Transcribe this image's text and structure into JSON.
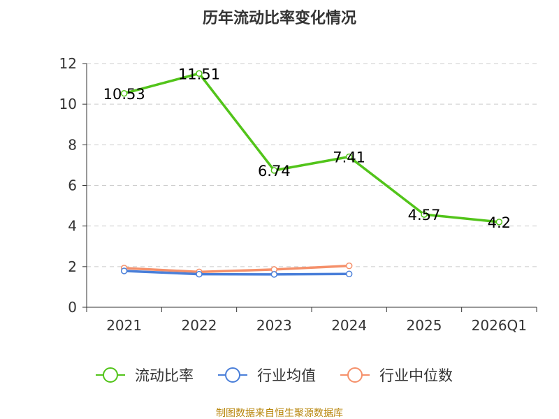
{
  "chart_data": {
    "type": "line",
    "title": "历年流动比率变化情况",
    "categories": [
      "2021",
      "2022",
      "2023",
      "2024",
      "2025",
      "2026Q1"
    ],
    "ylim": [
      0,
      12
    ],
    "yticks": [
      0,
      2,
      4,
      6,
      8,
      10,
      12
    ],
    "grid": true,
    "legend_position": "bottom",
    "series": [
      {
        "name": "流动比率",
        "color": "#52c41a",
        "values": [
          10.53,
          11.51,
          6.74,
          7.41,
          4.57,
          4.2
        ],
        "labels": [
          "10.53",
          "11.51",
          "6.74",
          "7.41",
          "4.57",
          "4.2"
        ]
      },
      {
        "name": "行业均值",
        "color": "#4a7fd9",
        "values": [
          1.79,
          1.63,
          1.62,
          1.64,
          null,
          null
        ]
      },
      {
        "name": "行业中位数",
        "color": "#f5906a",
        "values": [
          1.93,
          1.74,
          1.86,
          2.04,
          null,
          null
        ]
      }
    ],
    "source": "制图数据来自恒生聚源数据库"
  }
}
